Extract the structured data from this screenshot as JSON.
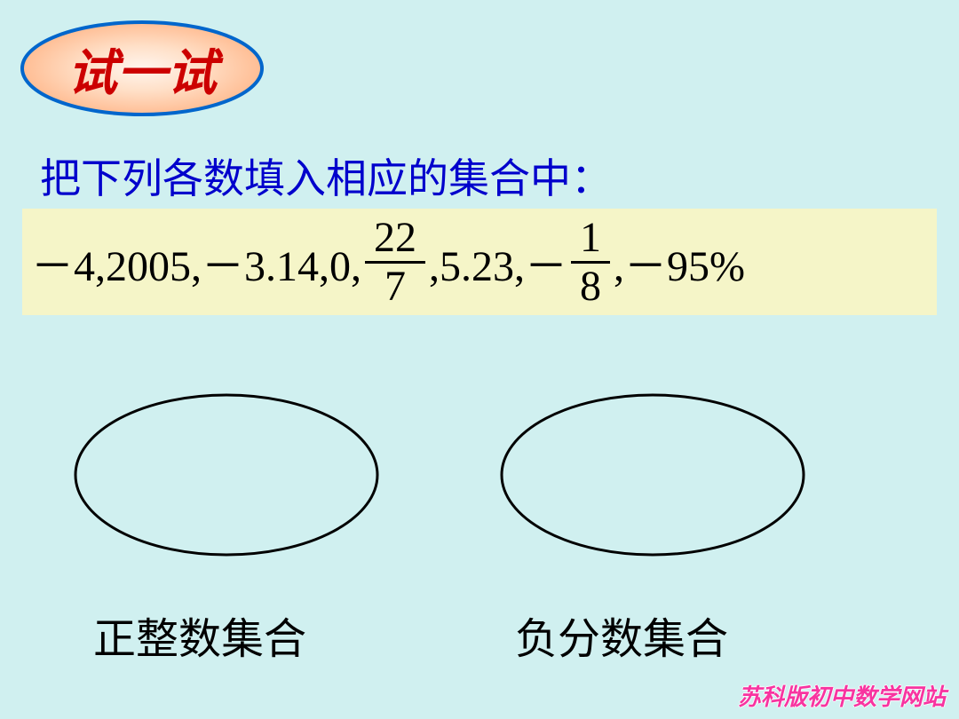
{
  "colors": {
    "background": "#d0f0f0",
    "badge_gradient_start": "#ffe8d8",
    "badge_gradient_mid": "#ffb888",
    "badge_border": "#0066cc",
    "badge_text": "#cc0000",
    "instruction_text": "#0000cc",
    "number_box_bg": "#f5f5c8",
    "number_text": "#000000",
    "ellipse_stroke": "#000000",
    "label_text": "#000000",
    "watermark": "#ff1493"
  },
  "badge": {
    "text": "试一试",
    "fontsize": 56
  },
  "instruction": {
    "text": "把下列各数填入相应的集合中：",
    "fontsize": 46
  },
  "numbers": {
    "parts": [
      {
        "type": "text",
        "value": "－4,2005,－3.14,0,"
      },
      {
        "type": "fraction",
        "num": "22",
        "den": "7"
      },
      {
        "type": "text",
        "value": ",5.23,－"
      },
      {
        "type": "fraction",
        "num": "1",
        "den": "8"
      },
      {
        "type": "text",
        "value": ",－95%"
      }
    ],
    "fontsize": 48
  },
  "sets": {
    "left_label": "正整数集合",
    "right_label": "负分数集合",
    "ellipse_width": 350,
    "ellipse_height": 190,
    "stroke_width": 3
  },
  "watermark": {
    "text": "苏科版初中数学网站"
  }
}
